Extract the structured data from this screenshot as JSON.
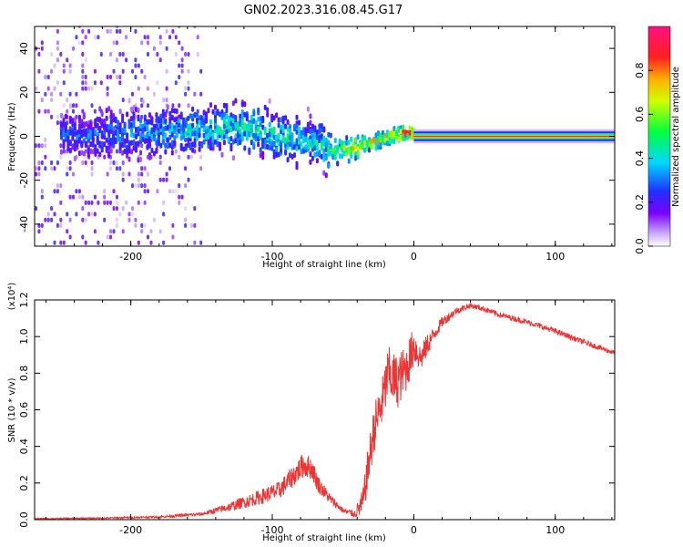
{
  "title": "GN02.2023.316.08.45.G17",
  "colors": {
    "snr_line": "#ee3333",
    "frame": "#000000",
    "spectrum_core": "#ff3030"
  },
  "chart_data": [
    {
      "type": "heatmap",
      "xlabel": "Height of straight line (km)",
      "ylabel": "Frequency (Hz)",
      "xlim": [
        -268,
        142
      ],
      "ylim": [
        -50,
        50
      ],
      "xticks": [
        -200,
        -100,
        0,
        100
      ],
      "xtick_labels": [
        "-200",
        "-100",
        "0",
        "100"
      ],
      "yticks": [
        -40,
        -20,
        0,
        20,
        40
      ],
      "ytick_labels": [
        "-40",
        "-20",
        "0",
        "20",
        "40"
      ],
      "colorbar": {
        "label": "Normalized spectral amplitude",
        "range": [
          0,
          1
        ],
        "ticks": [
          0.0,
          0.2,
          0.4,
          0.6,
          0.8
        ],
        "tick_labels": [
          "0.0",
          "0.2",
          "0.4",
          "0.6",
          "0.8"
        ],
        "colormap": "rainbow (white-violet-blue-cyan-green-yellow-orange-red-magenta)"
      },
      "ridge": [
        {
          "x": -240,
          "f": 0,
          "amp": 0.3
        },
        {
          "x": -150,
          "f": 3,
          "amp": 0.45
        },
        {
          "x": -120,
          "f": 4,
          "amp": 0.5
        },
        {
          "x": -90,
          "f": -1,
          "amp": 0.5
        },
        {
          "x": -70,
          "f": -4,
          "amp": 0.45
        },
        {
          "x": -55,
          "f": -7,
          "amp": 0.6
        },
        {
          "x": -40,
          "f": -5,
          "amp": 0.75
        },
        {
          "x": -25,
          "f": -2,
          "amp": 0.85
        },
        {
          "x": -10,
          "f": 1,
          "amp": 0.9
        },
        {
          "x": 0,
          "f": 1,
          "amp": 0.95
        },
        {
          "x": 142,
          "f": 0,
          "amp": 0.95
        }
      ]
    },
    {
      "type": "line",
      "xlabel": "Height of straight line (km)",
      "ylabel": "SNR (10 * v/v)",
      "y_multiplier": "(x10⁴)",
      "xlim": [
        -268,
        142
      ],
      "ylim": [
        0,
        12000
      ],
      "xticks": [
        -200,
        -100,
        0,
        100
      ],
      "xtick_labels": [
        "-200",
        "-100",
        "0",
        "100"
      ],
      "yticks": [
        0,
        2000,
        4000,
        6000,
        8000,
        10000,
        12000
      ],
      "ytick_labels": [
        "0.0",
        "0.2",
        "0.4",
        "0.6",
        "0.8",
        "1.0",
        "1.2"
      ],
      "series": [
        {
          "x": [
            -268,
            -220,
            -180,
            -150,
            -130,
            -110,
            -95,
            -85,
            -78,
            -72,
            -68,
            -60,
            -50,
            -42,
            -36,
            -32,
            -28,
            -22,
            -18,
            -12,
            -5,
            0,
            5,
            10,
            15,
            20,
            30,
            40,
            50,
            60,
            80,
            100,
            120,
            142
          ],
          "y": [
            50,
            80,
            150,
            300,
            700,
            1200,
            1600,
            2400,
            3000,
            2800,
            2000,
            1200,
            500,
            300,
            900,
            3000,
            5000,
            6500,
            8000,
            7500,
            8300,
            9500,
            8800,
            9600,
            10200,
            10800,
            11400,
            11700,
            11500,
            11200,
            10800,
            10300,
            9700,
            9100
          ],
          "noise": [
            30,
            40,
            60,
            100,
            250,
            400,
            500,
            600,
            700,
            600,
            500,
            300,
            150,
            200,
            800,
            1200,
            1300,
            1400,
            1500,
            1500,
            1300,
            1100,
            700,
            600,
            400,
            300,
            200,
            150,
            150,
            150,
            150,
            150,
            150,
            150
          ]
        }
      ]
    }
  ]
}
